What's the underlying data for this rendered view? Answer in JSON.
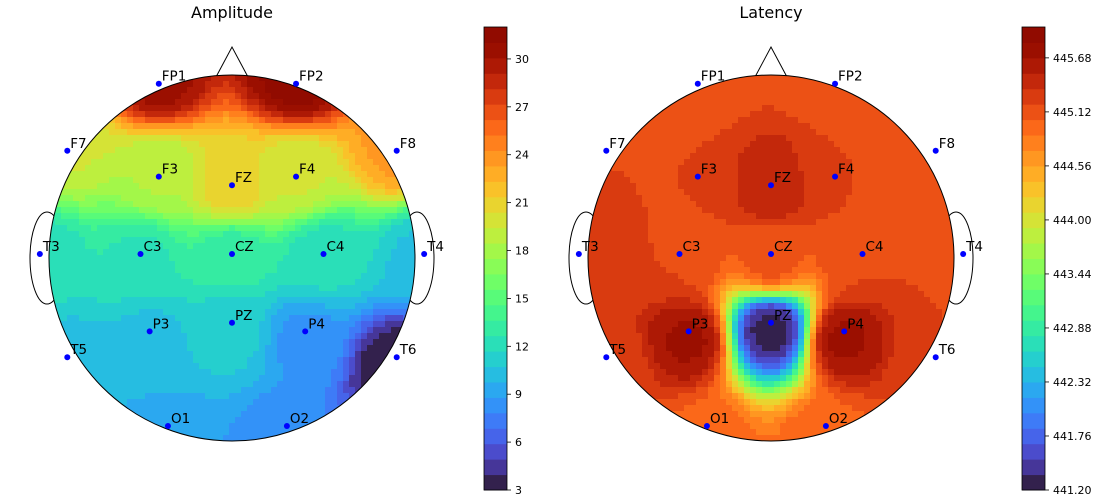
{
  "chart_data": [
    {
      "type": "heatmap",
      "title": "Amplitude",
      "colormap": "turbo",
      "colorbar": {
        "min": 3,
        "max": 32,
        "ticks": [
          3,
          6,
          9,
          12,
          15,
          18,
          21,
          24,
          27,
          30
        ]
      },
      "electrodes": [
        {
          "name": "FP1",
          "value": 30.5
        },
        {
          "name": "FP2",
          "value": 31.5
        },
        {
          "name": "F7",
          "value": 19.5
        },
        {
          "name": "F3",
          "value": 18.5
        },
        {
          "name": "FZ",
          "value": 21
        },
        {
          "name": "F4",
          "value": 19.5
        },
        {
          "name": "F8",
          "value": 23.5
        },
        {
          "name": "T3",
          "value": 12
        },
        {
          "name": "C3",
          "value": 12.5
        },
        {
          "name": "CZ",
          "value": 13
        },
        {
          "name": "C4",
          "value": 12
        },
        {
          "name": "T4",
          "value": 10.5
        },
        {
          "name": "T5",
          "value": 10
        },
        {
          "name": "P3",
          "value": 10.5
        },
        {
          "name": "PZ",
          "value": 11
        },
        {
          "name": "P4",
          "value": 8.5
        },
        {
          "name": "T6",
          "value": 3
        },
        {
          "name": "O1",
          "value": 9
        },
        {
          "name": "O2",
          "value": 8
        }
      ]
    },
    {
      "type": "heatmap",
      "title": "Latency",
      "colormap": "turbo",
      "colorbar": {
        "min": 441.2,
        "max": 446.0,
        "ticks": [
          441.2,
          441.76,
          442.32,
          442.88,
          443.44,
          444.0,
          444.56,
          445.12,
          445.68
        ]
      },
      "electrodes": [
        {
          "name": "FP1",
          "value": 445.1
        },
        {
          "name": "FP2",
          "value": 445.1
        },
        {
          "name": "F7",
          "value": 445.2
        },
        {
          "name": "F3",
          "value": 445.2
        },
        {
          "name": "FZ",
          "value": 445.5
        },
        {
          "name": "F4",
          "value": 445.2
        },
        {
          "name": "F8",
          "value": 445.1
        },
        {
          "name": "T3",
          "value": 445.3
        },
        {
          "name": "C3",
          "value": 445.2
        },
        {
          "name": "CZ",
          "value": 445.1
        },
        {
          "name": "C4",
          "value": 445.2
        },
        {
          "name": "T4",
          "value": 445.2
        },
        {
          "name": "T5",
          "value": 445.2
        },
        {
          "name": "P3",
          "value": 445.7
        },
        {
          "name": "PZ",
          "value": 441.3
        },
        {
          "name": "P4",
          "value": 445.7
        },
        {
          "name": "T6",
          "value": 445.2
        },
        {
          "name": "O1",
          "value": 445.0
        },
        {
          "name": "O2",
          "value": 445.0
        }
      ]
    }
  ]
}
